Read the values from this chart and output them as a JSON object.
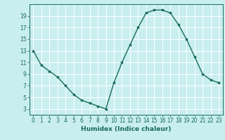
{
  "x": [
    0,
    1,
    2,
    3,
    4,
    5,
    6,
    7,
    8,
    9,
    10,
    11,
    12,
    13,
    14,
    15,
    16,
    17,
    18,
    19,
    20,
    21,
    22,
    23
  ],
  "y": [
    13,
    10.5,
    9.5,
    8.5,
    7,
    5.5,
    4.5,
    4,
    3.5,
    3,
    7.5,
    11,
    14,
    17,
    19.5,
    20,
    20,
    19.5,
    17.5,
    15,
    12,
    9,
    8,
    7.5
  ],
  "line_color": "#1a6b5a",
  "marker_color": "#1a6b5a",
  "bg_color": "#c8eef0",
  "grid_color": "#ffffff",
  "xlabel": "Humidex (Indice chaleur)",
  "xlim": [
    -0.5,
    23.5
  ],
  "ylim": [
    2,
    21
  ],
  "yticks": [
    3,
    5,
    7,
    9,
    11,
    13,
    15,
    17,
    19
  ],
  "xticks": [
    0,
    1,
    2,
    3,
    4,
    5,
    6,
    7,
    8,
    9,
    10,
    11,
    12,
    13,
    14,
    15,
    16,
    17,
    18,
    19,
    20,
    21,
    22,
    23
  ],
  "tick_label_size": 5.5,
  "xlabel_size": 6.5,
  "marker_size": 2.2,
  "line_width": 1.0
}
